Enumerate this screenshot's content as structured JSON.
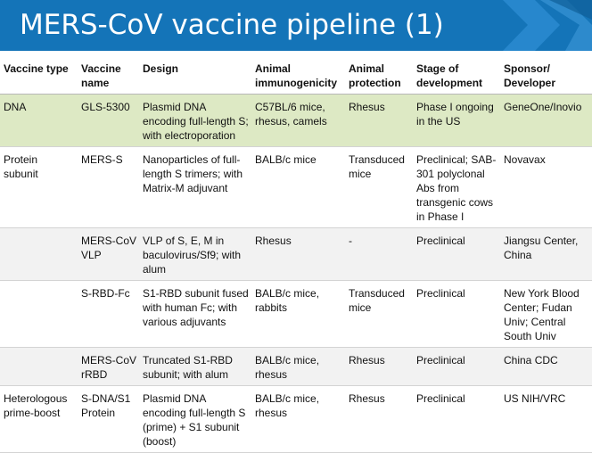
{
  "slide": {
    "title": "MERS-CoV vaccine pipeline (1)",
    "colors": {
      "header": "#1474b8",
      "highlight_row": "#dde9c4",
      "shade_row": "#f2f2f2"
    }
  },
  "table": {
    "headers": [
      "Vaccine type",
      "Vaccine name",
      "Design",
      "Animal immunogenicity",
      "Animal protection",
      "Stage of development",
      "Sponsor/ Developer"
    ],
    "rows": [
      [
        "DNA",
        "GLS-5300",
        "Plasmid DNA encoding full-length S; with electroporation",
        "C57BL/6 mice, rhesus, camels",
        "Rhesus",
        "Phase I ongoing in the US",
        "GeneOne/Inovio"
      ],
      [
        "Protein subunit",
        "MERS-S",
        "Nanoparticles of full-length S trimers; with Matrix-M adjuvant",
        "BALB/c mice",
        "Transduced mice",
        "Preclinical; SAB-301 polyclonal Abs from transgenic cows in Phase I",
        "Novavax"
      ],
      [
        "",
        "MERS-CoV VLP",
        "VLP of S, E, M in baculovirus/Sf9; with alum",
        "Rhesus",
        "-",
        "Preclinical",
        "Jiangsu Center, China"
      ],
      [
        "",
        "S-RBD-Fc",
        "S1-RBD subunit fused with human Fc; with various adjuvants",
        "BALB/c mice, rabbits",
        "Transduced mice",
        "Preclinical",
        "New York Blood Center; Fudan Univ; Central South Univ"
      ],
      [
        "",
        "MERS-CoV rRBD",
        "Truncated S1-RBD subunit; with alum",
        "BALB/c mice, rhesus",
        "Rhesus",
        "Preclinical",
        "China CDC"
      ],
      [
        "Heterologous prime-boost",
        "S-DNA/S1 Protein",
        "Plasmid DNA encoding full-length S (prime) + S1 subunit (boost)",
        "BALB/c mice, rhesus",
        "Rhesus",
        "Preclinical",
        "US NIH/VRC"
      ]
    ]
  }
}
